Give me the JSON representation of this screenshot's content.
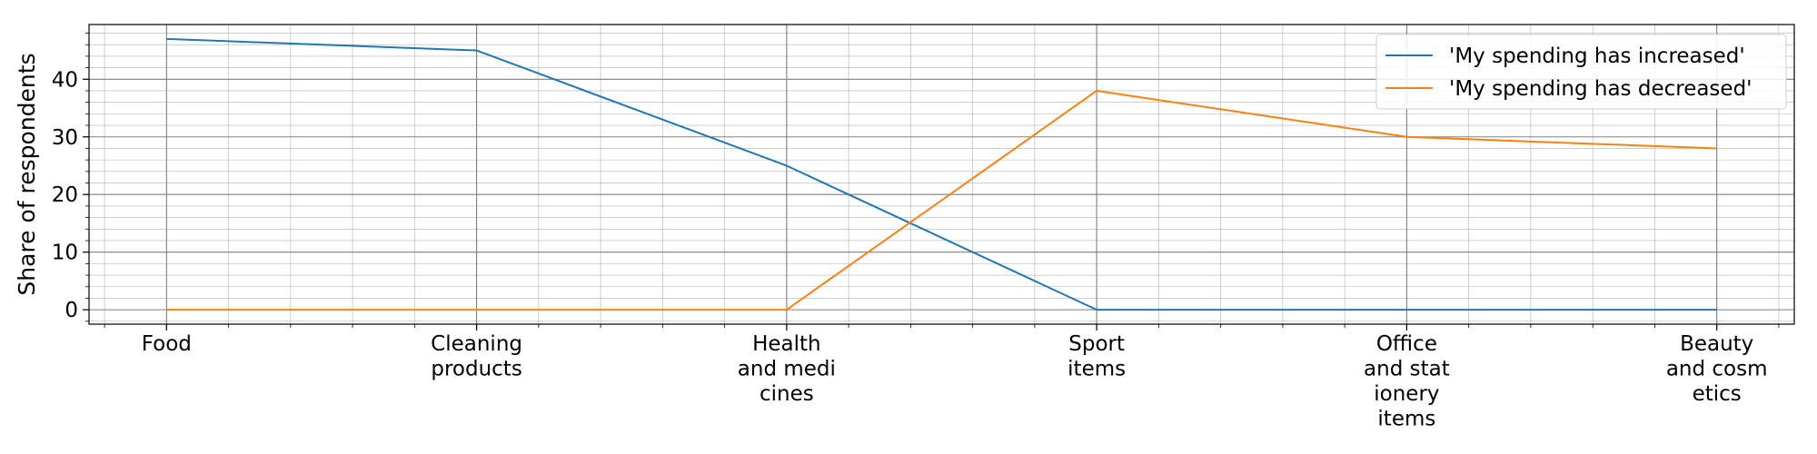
{
  "chart_data": {
    "type": "line",
    "title": "",
    "xlabel": "",
    "ylabel": "Share of respondents",
    "categories": [
      [
        "Food"
      ],
      [
        "Cleaning",
        "products"
      ],
      [
        "Health",
        "and medi",
        "cines"
      ],
      [
        "Sport",
        "items"
      ],
      [
        "Office",
        "and stat",
        "ionery",
        "items"
      ],
      [
        "Beauty",
        "and cosm",
        "etics"
      ]
    ],
    "ylim": [
      -2.5,
      49.5
    ],
    "yticks": [
      0,
      10,
      20,
      30,
      40
    ],
    "ytick_labels": [
      "0",
      "10",
      "20",
      "30",
      "40"
    ],
    "y_minor_step": 2,
    "x_minor_step": 0.2,
    "grid": true,
    "legend_position": "top-right",
    "series": [
      {
        "name": "'My spending has increased'",
        "color": "#1f77b4",
        "values": [
          47,
          45,
          25,
          0,
          0,
          0
        ]
      },
      {
        "name": "'My spending has decreased'",
        "color": "#ff7f0e",
        "values": [
          0,
          0,
          0,
          38,
          30,
          28
        ]
      }
    ]
  }
}
